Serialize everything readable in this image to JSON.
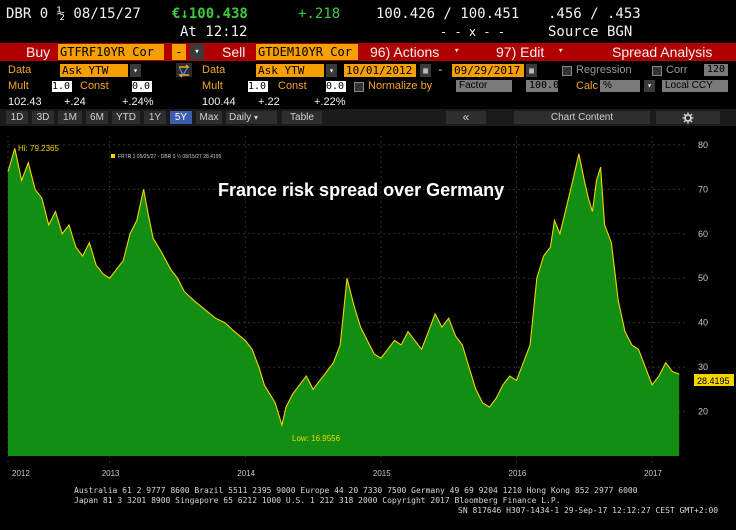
{
  "header": {
    "ticker": "DBR 0 ½ 08/15/27",
    "currency_price": "€↓100.438",
    "change": "+.218",
    "bid_ask": "100.426 / 100.451",
    "yield_pair": ".456 / .453",
    "at_time": "At 12:12",
    "x_sep": "- - x - -",
    "source": "Source BGN"
  },
  "command_bar": {
    "buy_label": "Buy",
    "buy_ticker": "GTFRF10YR Cor",
    "dash": "-",
    "sell_label": "Sell",
    "sell_ticker": "GTDEM10YR Cor",
    "actions": "96) Actions",
    "edit": "97) Edit",
    "spread_analysis": "Spread Analysis"
  },
  "left_panel": {
    "data_label": "Data",
    "data_value": "Ask YTW",
    "mult_label": "Mult",
    "mult_value": "1.0",
    "const_label": "Const",
    "const_value": "0.0",
    "last": "102.43",
    "chg": "+.24",
    "pct": "+.24%"
  },
  "right_panel": {
    "data_label": "Data",
    "data_value": "Ask YTW",
    "mult_label": "Mult",
    "mult_value": "1.0",
    "const_label": "Const",
    "const_value": "0.0",
    "last": "100.44",
    "chg": "+.22",
    "pct": "+.22%",
    "start_date": "10/01/2012",
    "end_date": "09/29/2017",
    "regression": "Regression",
    "corr": "Corr",
    "corr_value": "120",
    "normalize": "Normalize by",
    "factor": "Factor",
    "factor_value": "100.0",
    "calc": "Calc",
    "calc_value": "%",
    "local_ccy": "Local CCY"
  },
  "toolbar": {
    "ranges": [
      "1D",
      "3D",
      "1M",
      "6M",
      "YTD",
      "1Y",
      "5Y",
      "Max"
    ],
    "active_range": "5Y",
    "daily": "Daily",
    "table": "Table",
    "nav": "«",
    "chart_content": "Chart Content",
    "gear": "gear-icon"
  },
  "chart_data": {
    "type": "area",
    "title": "France risk spread over Germany",
    "legend": "FRTR 1 05/25/27 - DBR 0 ½ 08/15/27 28.4195",
    "hi_label": "Hi: 79.2365",
    "low_label": "Low: 16.9556",
    "last_value": "28.4195",
    "ylim": [
      10,
      82
    ],
    "yticks": [
      20,
      30,
      40,
      50,
      60,
      70,
      80
    ],
    "xlim": [
      2012.75,
      2017.75
    ],
    "xtick_labels": [
      "2012",
      "2013",
      "2014",
      "2015",
      "2016",
      "2017"
    ],
    "xtick_positions": [
      2012.75,
      2013.5,
      2014.5,
      2015.5,
      2016.5,
      2017.5
    ],
    "fill_color": "#128f12",
    "line_color": "#f5d400",
    "points": [
      [
        2012.75,
        74
      ],
      [
        2012.8,
        79.2
      ],
      [
        2012.85,
        72
      ],
      [
        2012.9,
        76
      ],
      [
        2012.95,
        70
      ],
      [
        2013.0,
        68
      ],
      [
        2013.05,
        62
      ],
      [
        2013.1,
        65
      ],
      [
        2013.15,
        60
      ],
      [
        2013.2,
        62
      ],
      [
        2013.25,
        57
      ],
      [
        2013.3,
        55
      ],
      [
        2013.35,
        58
      ],
      [
        2013.4,
        53
      ],
      [
        2013.45,
        51
      ],
      [
        2013.5,
        50
      ],
      [
        2013.55,
        52
      ],
      [
        2013.6,
        54
      ],
      [
        2013.65,
        60
      ],
      [
        2013.7,
        63
      ],
      [
        2013.75,
        70
      ],
      [
        2013.78,
        65
      ],
      [
        2013.82,
        59
      ],
      [
        2013.88,
        56
      ],
      [
        2013.95,
        52
      ],
      [
        2014.0,
        50
      ],
      [
        2014.05,
        47
      ],
      [
        2014.12,
        45
      ],
      [
        2014.2,
        43
      ],
      [
        2014.28,
        41
      ],
      [
        2014.35,
        40
      ],
      [
        2014.42,
        38
      ],
      [
        2014.5,
        36
      ],
      [
        2014.55,
        34
      ],
      [
        2014.6,
        30
      ],
      [
        2014.64,
        26
      ],
      [
        2014.68,
        24
      ],
      [
        2014.72,
        22
      ],
      [
        2014.75,
        19
      ],
      [
        2014.77,
        16.96
      ],
      [
        2014.8,
        21
      ],
      [
        2014.85,
        24
      ],
      [
        2014.9,
        26
      ],
      [
        2014.95,
        28
      ],
      [
        2015.0,
        25
      ],
      [
        2015.05,
        27
      ],
      [
        2015.1,
        29
      ],
      [
        2015.15,
        31
      ],
      [
        2015.2,
        35
      ],
      [
        2015.25,
        50
      ],
      [
        2015.3,
        44
      ],
      [
        2015.35,
        39
      ],
      [
        2015.4,
        36
      ],
      [
        2015.45,
        33
      ],
      [
        2015.5,
        32
      ],
      [
        2015.55,
        34
      ],
      [
        2015.6,
        36
      ],
      [
        2015.65,
        35
      ],
      [
        2015.7,
        38
      ],
      [
        2015.75,
        36
      ],
      [
        2015.8,
        34
      ],
      [
        2015.85,
        38
      ],
      [
        2015.9,
        42
      ],
      [
        2015.95,
        39
      ],
      [
        2016.0,
        41
      ],
      [
        2016.05,
        37
      ],
      [
        2016.1,
        35
      ],
      [
        2016.15,
        30
      ],
      [
        2016.2,
        25
      ],
      [
        2016.25,
        22
      ],
      [
        2016.3,
        21
      ],
      [
        2016.35,
        23
      ],
      [
        2016.4,
        26
      ],
      [
        2016.45,
        28
      ],
      [
        2016.5,
        27
      ],
      [
        2016.55,
        31
      ],
      [
        2016.6,
        35
      ],
      [
        2016.65,
        50
      ],
      [
        2016.7,
        55
      ],
      [
        2016.75,
        57
      ],
      [
        2016.78,
        63
      ],
      [
        2016.82,
        60
      ],
      [
        2016.86,
        65
      ],
      [
        2016.9,
        70
      ],
      [
        2016.93,
        74
      ],
      [
        2016.96,
        78
      ],
      [
        2017.0,
        72
      ],
      [
        2017.03,
        68
      ],
      [
        2017.06,
        65
      ],
      [
        2017.09,
        72
      ],
      [
        2017.12,
        75
      ],
      [
        2017.15,
        62
      ],
      [
        2017.2,
        58
      ],
      [
        2017.25,
        45
      ],
      [
        2017.3,
        38
      ],
      [
        2017.35,
        35
      ],
      [
        2017.4,
        34
      ],
      [
        2017.45,
        30
      ],
      [
        2017.5,
        26
      ],
      [
        2017.55,
        28
      ],
      [
        2017.6,
        31
      ],
      [
        2017.65,
        29
      ],
      [
        2017.7,
        28.42
      ]
    ]
  },
  "footer": {
    "line1": "Australia 61 2 9777 8600 Brazil 5511 2395 9000 Europe 44 20 7330 7500 Germany 49 69 9204 1210 Hong Kong 852 2977 6000",
    "line2": "Japan 81 3 3201 8900        Singapore 65 6212 1000        U.S. 1 212 318 2000        Copyright 2017 Bloomberg Finance L.P.",
    "line3": "SN 817646 H307-1434-1 29-Sep-17 12:12:27 CEST GMT+2:00"
  }
}
